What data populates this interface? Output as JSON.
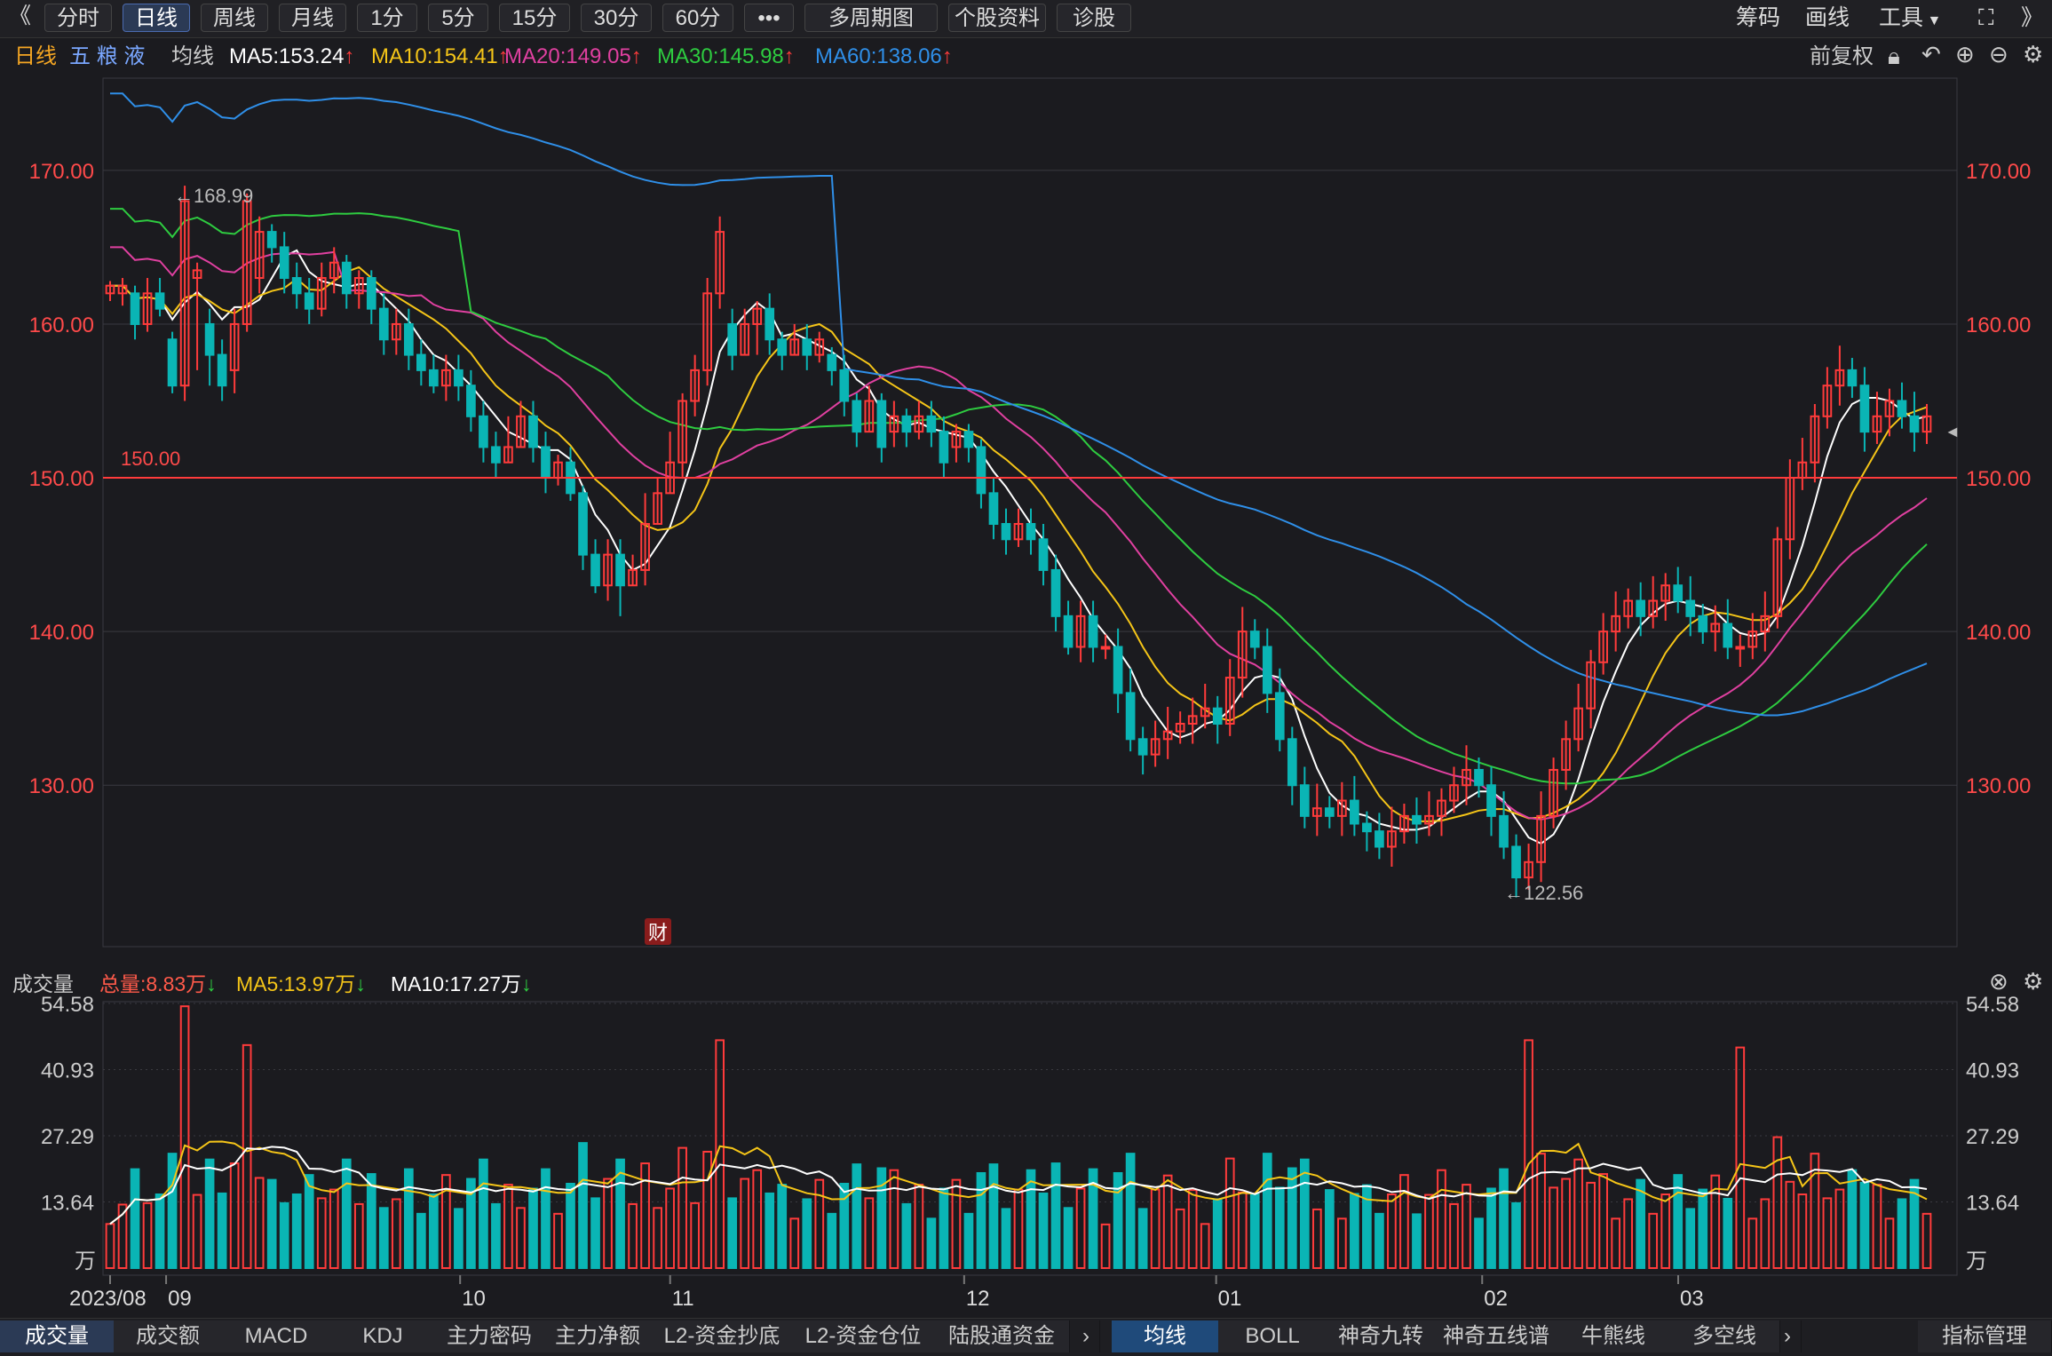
{
  "toolbar": {
    "back": "《",
    "periods": [
      "分时",
      "日线",
      "周线",
      "月线",
      "1分",
      "5分",
      "15分",
      "30分",
      "60分",
      "•••",
      "多周期图",
      "个股资料",
      "诊股"
    ],
    "active": "日线",
    "right": [
      "筹码",
      "画线",
      "工具"
    ],
    "expand": "⛶",
    "more": "》"
  },
  "legend": {
    "period": "日线",
    "name": "五 粮 液",
    "ma_label": "均线",
    "ma": [
      {
        "label": "MA5:153.24",
        "color": "#ffffff"
      },
      {
        "label": "MA10:154.41",
        "color": "#f5c518"
      },
      {
        "label": "MA20:149.05",
        "color": "#e040a0"
      },
      {
        "label": "MA30:145.98",
        "color": "#2ecc40"
      },
      {
        "label": "MA60:138.06",
        "color": "#2f8fe8"
      }
    ],
    "adjust": "前复权"
  },
  "vol_legend": {
    "title": "成交量",
    "total": "总量:8.83万",
    "ma5": "MA5:13.97万",
    "ma10": "MA10:17.27万"
  },
  "colors": {
    "up": "#ff3b3b",
    "down": "#0ab5b5",
    "bg": "#1b1b1f",
    "grid": "#3a3a40"
  },
  "bottom_tabs_left": [
    "成交量",
    "成交额",
    "MACD",
    "KDJ",
    "主力密码",
    "主力净额",
    "L2-资金抄底",
    "L2-资金仓位",
    "陆股通资金"
  ],
  "bottom_tabs_right": [
    "均线",
    "BOLL",
    "神奇九转",
    "神奇五线谱",
    "牛熊线",
    "多空线"
  ],
  "bottom_manage": "指标管理",
  "chart_data": {
    "type": "candlestick",
    "price_axis": {
      "ticks": [
        130,
        140,
        150,
        160,
        170
      ],
      "labels": [
        "130.00",
        "140.00",
        "150.00",
        "160.00",
        "170.00"
      ],
      "ylim": [
        119.5,
        176
      ]
    },
    "volume_axis": {
      "ticks": [
        13.64,
        27.29,
        40.93,
        54.58
      ],
      "labels": [
        "13.64",
        "27.29",
        "40.93",
        "54.58"
      ],
      "unit": "万",
      "ylim": [
        0,
        54.58
      ]
    },
    "x_labels": [
      {
        "i": 0,
        "text": "2023/08"
      },
      {
        "i": 4,
        "text": "09"
      },
      {
        "i": 25,
        "text": "10"
      },
      {
        "i": 40,
        "text": "11"
      },
      {
        "i": 61,
        "text": "12"
      },
      {
        "i": 79,
        "text": "01"
      },
      {
        "i": 98,
        "text": "02"
      },
      {
        "i": 112,
        "text": "03"
      }
    ],
    "annotations": {
      "high": "←168.99",
      "low": "←122.56",
      "line": "150.00",
      "line_value": 150,
      "event": "财"
    },
    "candles": [
      [
        162,
        162.5,
        161.5,
        162.8
      ],
      [
        162,
        162.5,
        161.2,
        163
      ],
      [
        162,
        160,
        159,
        162.5
      ],
      [
        160,
        162,
        159.5,
        163
      ],
      [
        162,
        161,
        160.5,
        163
      ],
      [
        159,
        156,
        155.5,
        159.5
      ],
      [
        156,
        168,
        155,
        169
      ],
      [
        163,
        163.5,
        157,
        164
      ],
      [
        160,
        158,
        156,
        161
      ],
      [
        158,
        156,
        155,
        159
      ],
      [
        157,
        160,
        155.5,
        161
      ],
      [
        160,
        168,
        159.5,
        168.5
      ],
      [
        163,
        166,
        162,
        167
      ],
      [
        166,
        165,
        164,
        166.5
      ],
      [
        165,
        163,
        162,
        166
      ],
      [
        163,
        162,
        161,
        164
      ],
      [
        162,
        161,
        160,
        163
      ],
      [
        161,
        163,
        160.5,
        164
      ],
      [
        163,
        164,
        162,
        165
      ],
      [
        164,
        162,
        161,
        164.5
      ],
      [
        162,
        163,
        161,
        163.5
      ],
      [
        163,
        161,
        160,
        163.5
      ],
      [
        161,
        159,
        158,
        162
      ],
      [
        159,
        160,
        158,
        161
      ],
      [
        160,
        158,
        157,
        161
      ],
      [
        158,
        157,
        156,
        159
      ],
      [
        157,
        156,
        155.5,
        158
      ],
      [
        156,
        157,
        155,
        158
      ],
      [
        157,
        156,
        155,
        158
      ],
      [
        156,
        154,
        153,
        157
      ],
      [
        154,
        152,
        151,
        155
      ],
      [
        152,
        151,
        150,
        153
      ],
      [
        151,
        152,
        151,
        154
      ],
      [
        152,
        154,
        152,
        155
      ],
      [
        154,
        152,
        151,
        155
      ],
      [
        152,
        150,
        149,
        153
      ],
      [
        150,
        151,
        149.5,
        151.5
      ],
      [
        151,
        149,
        148.5,
        152
      ],
      [
        149,
        145,
        144,
        149.5
      ],
      [
        145,
        143,
        142.5,
        146
      ],
      [
        143,
        145,
        142,
        146
      ],
      [
        145,
        143,
        141,
        146
      ],
      [
        143,
        144,
        143,
        145
      ],
      [
        144,
        147,
        143,
        149
      ],
      [
        147,
        149,
        147,
        150
      ],
      [
        149,
        151,
        149,
        153
      ],
      [
        151,
        155,
        150,
        155.5
      ],
      [
        155,
        157,
        154,
        158
      ],
      [
        157,
        162,
        156,
        163
      ],
      [
        162,
        166,
        161,
        167
      ],
      [
        160,
        158,
        157,
        161
      ],
      [
        158,
        160,
        158,
        161
      ],
      [
        160,
        161,
        158,
        161.5
      ],
      [
        161,
        159,
        158,
        162
      ],
      [
        159,
        158,
        157,
        159.5
      ],
      [
        158,
        159,
        158,
        160
      ],
      [
        159,
        158,
        157,
        160
      ],
      [
        158,
        159,
        157.5,
        159.5
      ],
      [
        158,
        157,
        156,
        158.5
      ],
      [
        157,
        155,
        154,
        158
      ],
      [
        155,
        153,
        152,
        155.5
      ],
      [
        153,
        155,
        153,
        156
      ],
      [
        155,
        152,
        151,
        155.5
      ],
      [
        153,
        154,
        152,
        155
      ],
      [
        154,
        153,
        152,
        154.5
      ],
      [
        153,
        154,
        152.5,
        155
      ],
      [
        154,
        153,
        152,
        155
      ],
      [
        153,
        151,
        150,
        154
      ],
      [
        152,
        153,
        151,
        153.5
      ],
      [
        153,
        152,
        151,
        153.5
      ],
      [
        152,
        149,
        148,
        152.5
      ],
      [
        149,
        147,
        146,
        150
      ],
      [
        147,
        146,
        145,
        148
      ],
      [
        146,
        147,
        145.5,
        148
      ],
      [
        147,
        146,
        145,
        148
      ],
      [
        146,
        144,
        143,
        147
      ],
      [
        144,
        141,
        140,
        145
      ],
      [
        141,
        139,
        138.5,
        142
      ],
      [
        139,
        141,
        138,
        142
      ],
      [
        141,
        139,
        138,
        142
      ]
    ],
    "volumes_from_candles": true
  }
}
